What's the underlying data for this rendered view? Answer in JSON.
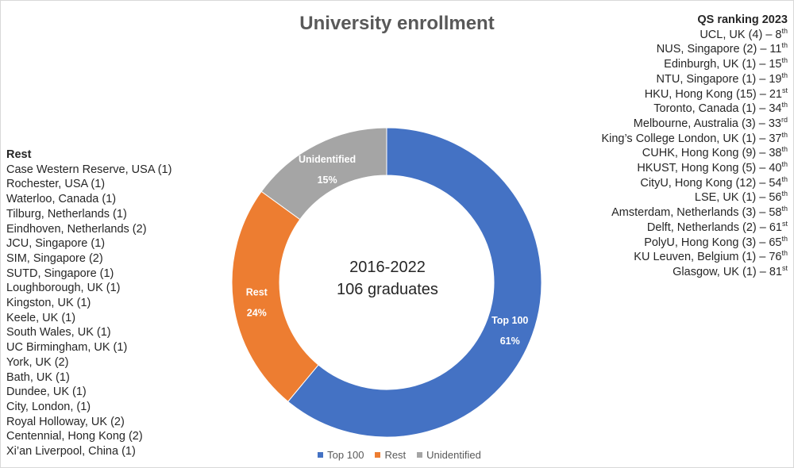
{
  "chart_data": {
    "type": "pie",
    "variant": "donut",
    "title": "University enrollment",
    "center_label_line1": "2016-2022",
    "center_label_line2": "106 graduates",
    "slices": [
      {
        "name": "Top 100",
        "value": 61,
        "label": "61%",
        "color": "#4472c4"
      },
      {
        "name": "Rest",
        "value": 24,
        "label": "24%",
        "color": "#ed7d31"
      },
      {
        "name": "Unidentified",
        "value": 15,
        "label": "15%",
        "color": "#a5a5a5"
      }
    ],
    "legend_position": "bottom"
  },
  "qs_ranking": {
    "title": "QS ranking 2023",
    "items": [
      {
        "text": "UCL, UK (4) – 8",
        "suffix": "th"
      },
      {
        "text": "NUS, Singapore (2) – 11",
        "suffix": "th"
      },
      {
        "text": "Edinburgh, UK (1) – 15",
        "suffix": "th"
      },
      {
        "text": "NTU, Singapore (1) – 19",
        "suffix": "th"
      },
      {
        "text": "HKU, Hong Kong (15) – 21",
        "suffix": "st"
      },
      {
        "text": "Toronto, Canada (1) – 34",
        "suffix": "th"
      },
      {
        "text": "Melbourne, Australia (3) – 33",
        "suffix": "rd"
      },
      {
        "text": "King’s College London, UK (1) – 37",
        "suffix": "th"
      },
      {
        "text": "CUHK, Hong Kong (9) – 38",
        "suffix": "th"
      },
      {
        "text": "HKUST, Hong Kong (5) – 40",
        "suffix": "th"
      },
      {
        "text": "CityU, Hong Kong (12) – 54",
        "suffix": "th"
      },
      {
        "text": "LSE, UK (1) – 56",
        "suffix": "th"
      },
      {
        "text": "Amsterdam, Netherlands (3) – 58",
        "suffix": "th"
      },
      {
        "text": "Delft, Netherlands (2) – 61",
        "suffix": "st"
      },
      {
        "text": "PolyU, Hong Kong (3) – 65",
        "suffix": "th"
      },
      {
        "text": "KU Leuven, Belgium (1) – 76",
        "suffix": "th"
      },
      {
        "text": "Glasgow, UK (1) – 81",
        "suffix": "st"
      }
    ]
  },
  "rest_list": {
    "title": "Rest",
    "items": [
      "Case Western Reserve, USA (1)",
      "Rochester, USA (1)",
      "Waterloo, Canada (1)",
      "Tilburg, Netherlands (1)",
      "Eindhoven, Netherlands (2)",
      "JCU, Singapore (1)",
      "SIM, Singapore (2)",
      "SUTD, Singapore (1)",
      "Loughborough, UK (1)",
      "Kingston, UK (1)",
      "Keele, UK (1)",
      "South Wales, UK (1)",
      "UC Birmingham, UK (1)",
      "York, UK (2)",
      "Bath, UK (1)",
      "Dundee, UK (1)",
      "City, London, (1)",
      "Royal Holloway, UK (2)",
      "Centennial, Hong Kong (2)",
      "Xi’an Liverpool, China (1)"
    ]
  }
}
